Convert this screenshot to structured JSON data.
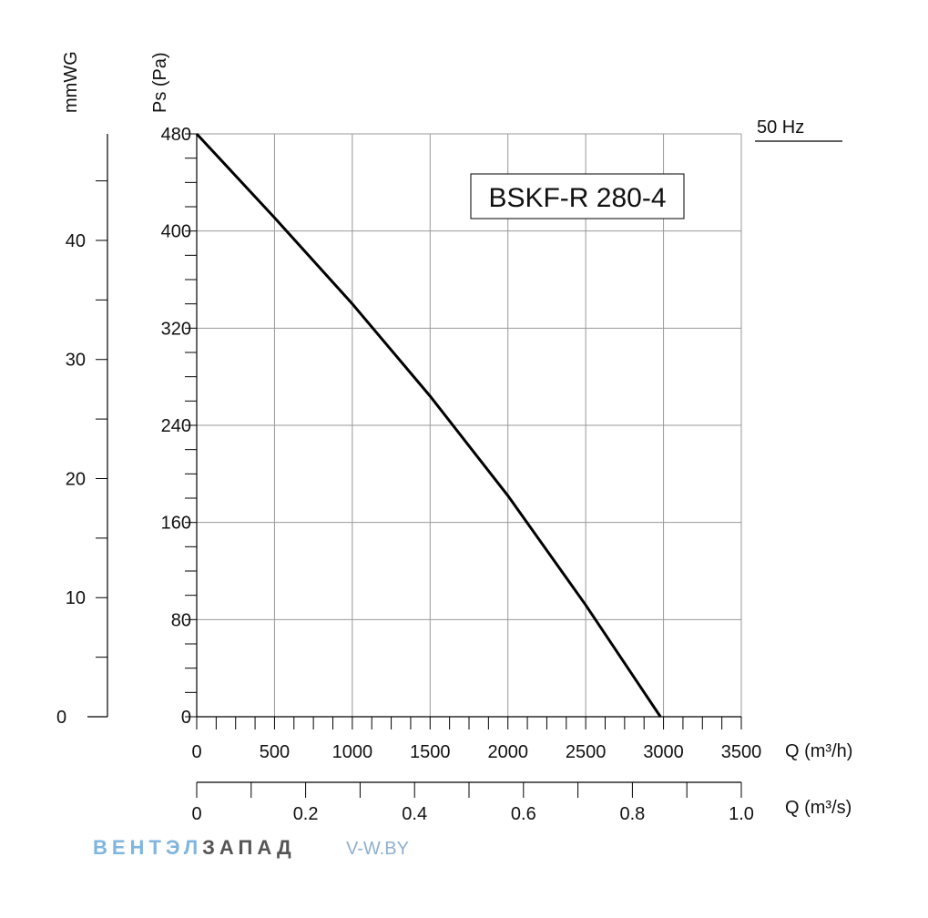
{
  "chart_data": {
    "type": "line",
    "title": "BSKF-R 280-4",
    "frequency_label": "50 Hz",
    "series": [
      {
        "name": "50 Hz",
        "x": [
          0,
          500,
          1000,
          1500,
          2000,
          2500,
          2980
        ],
        "y": [
          480,
          411,
          340,
          264,
          182,
          92,
          0
        ]
      }
    ],
    "xlabel": "Q (m³/h)",
    "xlim": [
      0,
      3500
    ],
    "x_ticks": [
      0,
      500,
      1000,
      1500,
      2000,
      2500,
      3000,
      3500
    ],
    "ylabel": "Ps (Pa)",
    "ylim": [
      0,
      480
    ],
    "y_ticks": [
      0,
      80,
      160,
      240,
      320,
      400,
      480
    ],
    "secondary_x": {
      "label": "Q (m³/s)",
      "lim": [
        0,
        1.0
      ],
      "ticks": [
        "0",
        "0.2",
        "0.4",
        "0.6",
        "0.8",
        "1.0"
      ]
    },
    "secondary_y": {
      "label": "mmWG",
      "ticks": [
        "0",
        "10",
        "20",
        "30",
        "40"
      ]
    },
    "grid": true
  },
  "branding": {
    "part1": "ВЕНТЭЛ",
    "part2": "ЗАПАД",
    "site": "V-W.BY",
    "colors": {
      "part1": "#7fb5de",
      "part2": "#555555",
      "site": "#8fb0cf"
    }
  }
}
